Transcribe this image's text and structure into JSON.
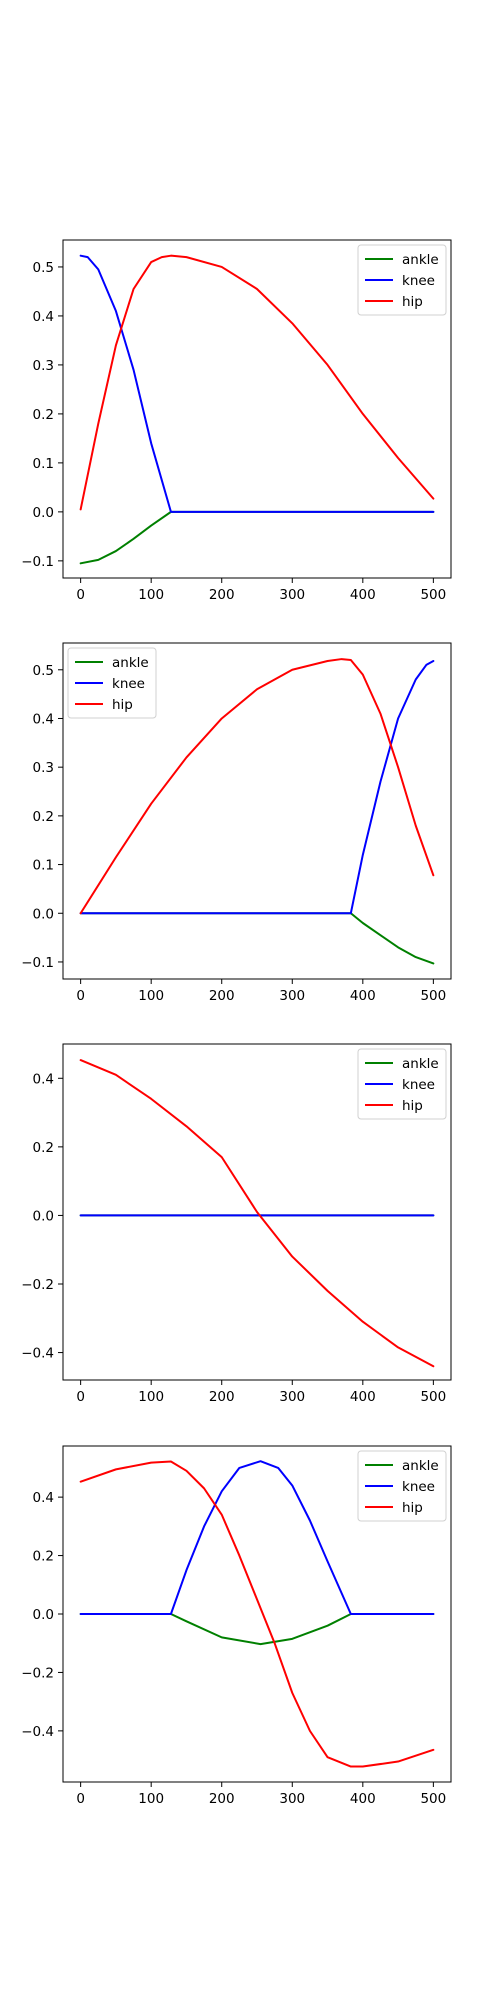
{
  "chart_data": [
    {
      "type": "line",
      "xlim": [
        -25,
        525
      ],
      "ylim": [
        -0.135,
        0.555
      ],
      "xticks": [
        0,
        100,
        200,
        300,
        400,
        500
      ],
      "yticks": [
        -0.1,
        0.0,
        0.1,
        0.2,
        0.3,
        0.4,
        0.5
      ],
      "ytick_labels": [
        "−0.1",
        "0.0",
        "0.1",
        "0.2",
        "0.3",
        "0.4",
        "0.5"
      ],
      "legend": "top-right",
      "series": [
        {
          "name": "ankle",
          "color": "#008000",
          "x": [
            0,
            25,
            50,
            75,
            100,
            128,
            200,
            300,
            400,
            500
          ],
          "y": [
            -0.105,
            -0.098,
            -0.08,
            -0.055,
            -0.028,
            0.0,
            0.0,
            0.0,
            0.0,
            0.0
          ]
        },
        {
          "name": "knee",
          "color": "#0000ff",
          "x": [
            0,
            10,
            25,
            50,
            75,
            100,
            128,
            200,
            300,
            400,
            500
          ],
          "y": [
            0.523,
            0.52,
            0.495,
            0.41,
            0.29,
            0.14,
            0.0,
            0.0,
            0.0,
            0.0,
            0.0
          ]
        },
        {
          "name": "hip",
          "color": "#ff0000",
          "x": [
            0,
            25,
            50,
            75,
            100,
            115,
            128,
            150,
            200,
            250,
            300,
            350,
            400,
            450,
            500
          ],
          "y": [
            0.005,
            0.18,
            0.34,
            0.455,
            0.51,
            0.52,
            0.523,
            0.52,
            0.5,
            0.455,
            0.385,
            0.3,
            0.2,
            0.11,
            0.027
          ]
        }
      ]
    },
    {
      "type": "line",
      "xlim": [
        -25,
        525
      ],
      "ylim": [
        -0.135,
        0.555
      ],
      "xticks": [
        0,
        100,
        200,
        300,
        400,
        500
      ],
      "yticks": [
        -0.1,
        0.0,
        0.1,
        0.2,
        0.3,
        0.4,
        0.5
      ],
      "ytick_labels": [
        "−0.1",
        "0.0",
        "0.1",
        "0.2",
        "0.3",
        "0.4",
        "0.5"
      ],
      "legend": "top-left",
      "series": [
        {
          "name": "ankle",
          "color": "#008000",
          "x": [
            0,
            100,
            200,
            300,
            383,
            400,
            425,
            450,
            475,
            500
          ],
          "y": [
            0.0,
            0.0,
            0.0,
            0.0,
            0.0,
            -0.02,
            -0.045,
            -0.07,
            -0.09,
            -0.103
          ]
        },
        {
          "name": "knee",
          "color": "#0000ff",
          "x": [
            0,
            100,
            200,
            300,
            383,
            400,
            425,
            450,
            475,
            490,
            500
          ],
          "y": [
            0.0,
            0.0,
            0.0,
            0.0,
            0.0,
            0.12,
            0.27,
            0.4,
            0.48,
            0.51,
            0.518
          ]
        },
        {
          "name": "hip",
          "color": "#ff0000",
          "x": [
            0,
            50,
            100,
            150,
            200,
            250,
            300,
            350,
            370,
            383,
            400,
            425,
            450,
            475,
            500
          ],
          "y": [
            0.0,
            0.115,
            0.225,
            0.32,
            0.4,
            0.46,
            0.5,
            0.518,
            0.522,
            0.52,
            0.49,
            0.41,
            0.3,
            0.18,
            0.078
          ]
        }
      ]
    },
    {
      "type": "line",
      "xlim": [
        -25,
        525
      ],
      "ylim": [
        -0.48,
        0.5
      ],
      "xticks": [
        0,
        100,
        200,
        300,
        400,
        500
      ],
      "yticks": [
        -0.4,
        -0.2,
        0.0,
        0.2,
        0.4
      ],
      "ytick_labels": [
        "−0.4",
        "−0.2",
        "0.0",
        "0.2",
        "0.4"
      ],
      "legend": "top-right",
      "series": [
        {
          "name": "ankle",
          "color": "#008000",
          "x": [
            0,
            500
          ],
          "y": [
            0.0,
            0.0
          ]
        },
        {
          "name": "knee",
          "color": "#0000ff",
          "x": [
            0,
            500
          ],
          "y": [
            0.0,
            0.0
          ]
        },
        {
          "name": "hip",
          "color": "#ff0000",
          "x": [
            0,
            50,
            100,
            150,
            200,
            250,
            300,
            350,
            400,
            450,
            500
          ],
          "y": [
            0.453,
            0.41,
            0.34,
            0.26,
            0.17,
            0.01,
            -0.12,
            -0.22,
            -0.31,
            -0.385,
            -0.44
          ]
        }
      ]
    },
    {
      "type": "line",
      "xlim": [
        -25,
        525
      ],
      "ylim": [
        -0.575,
        0.575
      ],
      "xticks": [
        0,
        100,
        200,
        300,
        400,
        500
      ],
      "yticks": [
        -0.4,
        -0.2,
        0.0,
        0.2,
        0.4
      ],
      "ytick_labels": [
        "−0.4",
        "−0.2",
        "0.0",
        "0.2",
        "0.4"
      ],
      "legend": "top-right",
      "series": [
        {
          "name": "ankle",
          "color": "#008000",
          "x": [
            0,
            128,
            150,
            200,
            255,
            300,
            350,
            383,
            400,
            500
          ],
          "y": [
            0.0,
            0.0,
            -0.025,
            -0.08,
            -0.103,
            -0.085,
            -0.04,
            0.0,
            0.0,
            0.0
          ]
        },
        {
          "name": "knee",
          "color": "#0000ff",
          "x": [
            0,
            128,
            150,
            175,
            200,
            225,
            255,
            280,
            300,
            325,
            350,
            383,
            400,
            500
          ],
          "y": [
            0.0,
            0.0,
            0.15,
            0.3,
            0.42,
            0.5,
            0.523,
            0.5,
            0.44,
            0.32,
            0.18,
            0.0,
            0.0,
            0.0
          ]
        },
        {
          "name": "hip",
          "color": "#ff0000",
          "x": [
            0,
            50,
            100,
            128,
            150,
            175,
            200,
            225,
            250,
            275,
            300,
            325,
            350,
            383,
            400,
            450,
            500
          ],
          "y": [
            0.453,
            0.495,
            0.518,
            0.522,
            0.49,
            0.43,
            0.34,
            0.2,
            0.05,
            -0.1,
            -0.27,
            -0.4,
            -0.49,
            -0.522,
            -0.522,
            -0.505,
            -0.465
          ]
        }
      ]
    }
  ]
}
